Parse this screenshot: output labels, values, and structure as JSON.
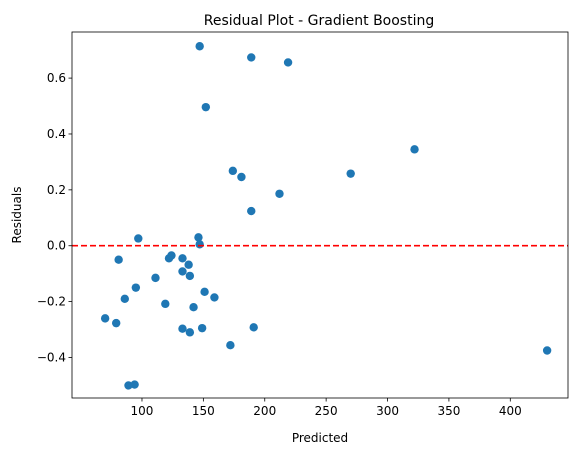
{
  "chart_data": {
    "type": "scatter",
    "title": "Residual Plot - Gradient Boosting",
    "xlabel": "Predicted",
    "ylabel": "Residuals",
    "xlim": [
      43,
      447
    ],
    "ylim": [
      -0.545,
      0.765
    ],
    "xticks": [
      100,
      150,
      200,
      250,
      300,
      350,
      400
    ],
    "yticks": [
      -0.4,
      -0.2,
      0.0,
      0.2,
      0.4,
      0.6
    ],
    "xtick_labels": [
      "100",
      "150",
      "200",
      "250",
      "300",
      "350",
      "400"
    ],
    "ytick_labels": [
      "−0.4",
      "−0.2",
      "0.0",
      "0.2",
      "0.4",
      "0.6"
    ],
    "grid": false,
    "point_color": "#1f77b4",
    "reference_line": {
      "y": 0.0,
      "color": "#ff0000",
      "style": "dashed"
    },
    "points": [
      {
        "x": 70,
        "y": -0.26
      },
      {
        "x": 79,
        "y": -0.277
      },
      {
        "x": 81,
        "y": -0.05
      },
      {
        "x": 86,
        "y": -0.19
      },
      {
        "x": 89,
        "y": -0.5
      },
      {
        "x": 94,
        "y": -0.497
      },
      {
        "x": 95,
        "y": -0.15
      },
      {
        "x": 97,
        "y": 0.026
      },
      {
        "x": 111,
        "y": -0.115
      },
      {
        "x": 119,
        "y": -0.208
      },
      {
        "x": 122,
        "y": -0.045
      },
      {
        "x": 124,
        "y": -0.035
      },
      {
        "x": 133,
        "y": -0.045
      },
      {
        "x": 133,
        "y": -0.092
      },
      {
        "x": 133,
        "y": -0.297
      },
      {
        "x": 138,
        "y": -0.068
      },
      {
        "x": 139,
        "y": -0.108
      },
      {
        "x": 139,
        "y": -0.31
      },
      {
        "x": 142,
        "y": -0.22
      },
      {
        "x": 146,
        "y": 0.03
      },
      {
        "x": 147,
        "y": 0.005
      },
      {
        "x": 147,
        "y": 0.714
      },
      {
        "x": 149,
        "y": -0.295
      },
      {
        "x": 151,
        "y": -0.165
      },
      {
        "x": 152,
        "y": 0.496
      },
      {
        "x": 159,
        "y": -0.185
      },
      {
        "x": 172,
        "y": -0.356
      },
      {
        "x": 174,
        "y": 0.268
      },
      {
        "x": 181,
        "y": 0.246
      },
      {
        "x": 189,
        "y": 0.674
      },
      {
        "x": 189,
        "y": 0.124
      },
      {
        "x": 191,
        "y": -0.292
      },
      {
        "x": 212,
        "y": 0.186
      },
      {
        "x": 219,
        "y": 0.656
      },
      {
        "x": 270,
        "y": 0.258
      },
      {
        "x": 322,
        "y": 0.345
      },
      {
        "x": 430,
        "y": -0.375
      }
    ]
  }
}
